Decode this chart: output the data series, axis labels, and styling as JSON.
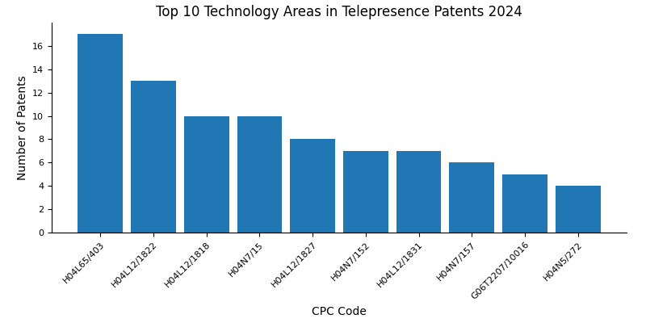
{
  "title": "Top 10 Technology Areas in Telepresence Patents 2024",
  "xlabel": "CPC Code",
  "ylabel": "Number of Patents",
  "categories": [
    "H04L65/403",
    "H04L12/1822",
    "H04L12/1818",
    "H04N7/15",
    "H04L12/1827",
    "H04N7/152",
    "H04L12/1831",
    "H04N7/157",
    "G06T2207/10016",
    "H04N5/272"
  ],
  "values": [
    17,
    13,
    10,
    10,
    8,
    7,
    7,
    6,
    5,
    4
  ],
  "bar_color": "#2077b4",
  "ylim": [
    0,
    18
  ],
  "yticks": [
    0,
    2,
    4,
    6,
    8,
    10,
    12,
    14,
    16
  ],
  "figsize": [
    8.0,
    4.0
  ],
  "dpi": 100,
  "title_fontsize": 12,
  "label_fontsize": 10,
  "tick_fontsize": 8,
  "bar_width": 0.85
}
